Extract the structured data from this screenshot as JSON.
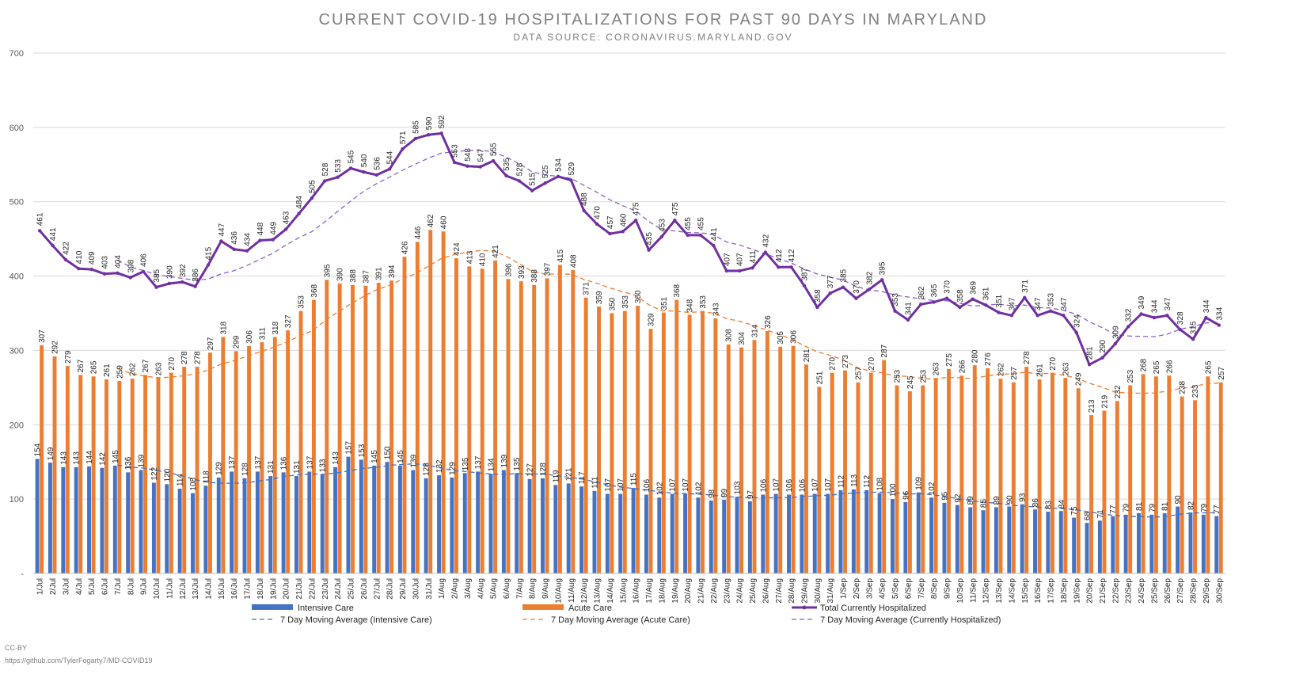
{
  "title": "CURRENT COVID-19 HOSPITALIZATIONS FOR PAST 90 DAYS IN MARYLAND",
  "subtitle": "DATA SOURCE: CORONAVIRUS.MARYLAND.GOV",
  "footer": {
    "license": "CC-BY",
    "source_url": "https://github.com/TylerFogarty7/MD-COVID19"
  },
  "colors": {
    "intensive": "#4472c4",
    "acute": "#ed7d31",
    "total": "#7030a0",
    "total_marker": "#7030a0",
    "grid": "#d9d9d9"
  },
  "chart_data": {
    "type": "bar",
    "title": "CURRENT COVID-19 HOSPITALIZATIONS FOR PAST 90 DAYS IN MARYLAND",
    "subtitle": "DATA SOURCE: CORONAVIRUS.MARYLAND.GOV",
    "xlabel": "",
    "ylabel": "",
    "ylim": [
      0,
      700
    ],
    "yticks": [
      0,
      100,
      200,
      300,
      400,
      500,
      600,
      700
    ],
    "ytick_labels": [
      "-",
      "100",
      "200",
      "300",
      "400",
      "500",
      "600",
      "700"
    ],
    "grid": true,
    "legend_position": "bottom",
    "categories": [
      "1/Jul",
      "2/Jul",
      "3/Jul",
      "4/Jul",
      "5/Jul",
      "6/Jul",
      "7/Jul",
      "8/Jul",
      "9/Jul",
      "10/Jul",
      "11/Jul",
      "12/Jul",
      "13/Jul",
      "14/Jul",
      "15/Jul",
      "16/Jul",
      "17/Jul",
      "18/Jul",
      "19/Jul",
      "20/Jul",
      "21/Jul",
      "22/Jul",
      "23/Jul",
      "24/Jul",
      "25/Jul",
      "26/Jul",
      "27/Jul",
      "28/Jul",
      "29/Jul",
      "30/Jul",
      "31/Jul",
      "1/Aug",
      "2/Aug",
      "3/Aug",
      "4/Aug",
      "5/Aug",
      "6/Aug",
      "7/Aug",
      "8/Aug",
      "9/Aug",
      "10/Aug",
      "11/Aug",
      "12/Aug",
      "13/Aug",
      "14/Aug",
      "15/Aug",
      "16/Aug",
      "17/Aug",
      "18/Aug",
      "19/Aug",
      "20/Aug",
      "21/Aug",
      "22/Aug",
      "23/Aug",
      "24/Aug",
      "25/Aug",
      "26/Aug",
      "27/Aug",
      "28/Aug",
      "29/Aug",
      "30/Aug",
      "31/Aug",
      "1/Sep",
      "2/Sep",
      "3/Sep",
      "4/Sep",
      "5/Sep",
      "6/Sep",
      "7/Sep",
      "8/Sep",
      "9/Sep",
      "10/Sep",
      "11/Sep",
      "12/Sep",
      "13/Sep",
      "14/Sep",
      "15/Sep",
      "16/Sep",
      "17/Sep",
      "18/Sep",
      "19/Sep",
      "20/Sep",
      "21/Sep",
      "22/Sep",
      "23/Sep",
      "24/Sep",
      "25/Sep",
      "26/Sep",
      "27/Sep",
      "28/Sep",
      "29/Sep",
      "30/Sep"
    ],
    "series": [
      {
        "name": "Intensive Care",
        "type": "bar",
        "values": [
          154,
          149,
          143,
          143,
          144,
          142,
          145,
          136,
          139,
          122,
          120,
          114,
          108,
          118,
          129,
          137,
          128,
          137,
          131,
          136,
          131,
          137,
          133,
          143,
          157,
          153,
          145,
          150,
          145,
          139,
          128,
          132,
          129,
          135,
          137,
          134,
          139,
          135,
          127,
          128,
          119,
          121,
          117,
          111,
          107,
          107,
          115,
          106,
          102,
          107,
          107,
          102,
          98,
          99,
          103,
          97,
          106,
          107,
          106,
          106,
          107,
          107,
          112,
          113,
          112,
          108,
          100,
          96,
          109,
          102,
          95,
          92,
          89,
          85,
          89,
          90,
          93,
          86,
          83,
          84,
          75,
          68,
          71,
          77,
          79,
          81,
          79,
          81,
          90,
          82,
          79,
          77
        ]
      },
      {
        "name": "Acute Care",
        "type": "bar",
        "values": [
          307,
          292,
          279,
          267,
          265,
          261,
          259,
          262,
          267,
          263,
          270,
          278,
          278,
          297,
          318,
          299,
          306,
          311,
          318,
          327,
          353,
          368,
          395,
          390,
          388,
          387,
          391,
          394,
          426,
          446,
          462,
          460,
          424,
          413,
          410,
          421,
          396,
          393,
          388,
          397,
          415,
          408,
          371,
          359,
          350,
          353,
          360,
          329,
          351,
          368,
          348,
          353,
          343,
          308,
          304,
          314,
          326,
          305,
          306,
          281,
          251,
          270,
          273,
          257,
          270,
          287,
          253,
          245,
          253,
          263,
          275,
          266,
          280,
          276,
          262,
          257,
          278,
          261,
          270,
          263,
          249,
          213,
          219,
          232,
          253,
          268,
          265,
          266,
          238,
          233,
          265,
          257
        ]
      },
      {
        "name": "Total Currently Hospitalized",
        "type": "line",
        "values": [
          461,
          441,
          422,
          410,
          409,
          403,
          404,
          398,
          406,
          385,
          390,
          392,
          386,
          415,
          447,
          436,
          434,
          448,
          449,
          463,
          484,
          505,
          528,
          533,
          545,
          540,
          536,
          544,
          571,
          585,
          590,
          592,
          553,
          548,
          547,
          555,
          535,
          528,
          515,
          525,
          534,
          529,
          488,
          470,
          457,
          460,
          475,
          435,
          453,
          475,
          455,
          455,
          441,
          407,
          407,
          411,
          432,
          412,
          412,
          387,
          358,
          377,
          385,
          370,
          382,
          395,
          353,
          341,
          362,
          365,
          370,
          358,
          369,
          361,
          351,
          347,
          371,
          347,
          353,
          347,
          324,
          281,
          290,
          309,
          332,
          349,
          344,
          347,
          328,
          315,
          344,
          334
        ]
      },
      {
        "name": "7 Day Moving Average (Intensive Care)",
        "type": "ma",
        "source": 0
      },
      {
        "name": "7 Day Moving Average (Acute Care)",
        "type": "ma",
        "source": 1
      },
      {
        "name": "7 Day Moving Average (Currently Hospitalized)",
        "type": "ma",
        "source": 2
      }
    ]
  }
}
